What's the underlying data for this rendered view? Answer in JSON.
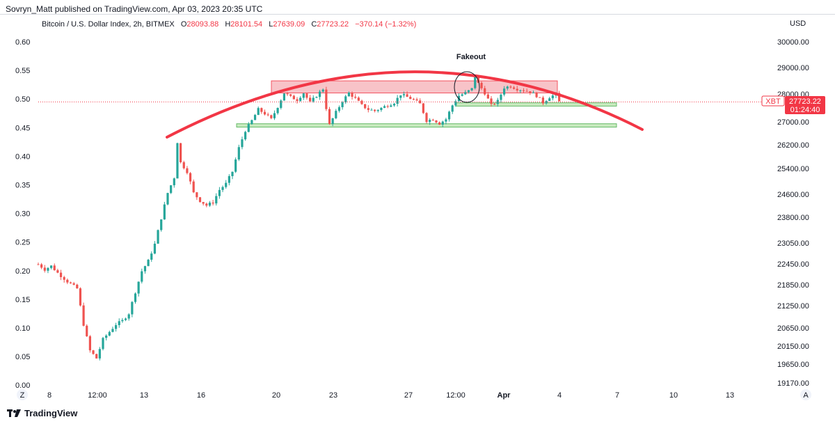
{
  "header": {
    "published_by": "Sovryn_Matt published on TradingView.com, Apr 03, 2023 20:35 UTC"
  },
  "legend": {
    "symbol": "Bitcoin / U.S. Dollar Index, 2h, BITMEX",
    "o_label": "O",
    "o_value": "28093.88",
    "h_label": "H",
    "h_value": "28101.54",
    "l_label": "L",
    "l_value": "27639.09",
    "c_label": "C",
    "c_value": "27723.22",
    "change": "−370.14 (−1.32%)"
  },
  "price_axis_currency": "USD",
  "price_tag": {
    "symbol": "XBT",
    "price": "27723.22",
    "countdown": "01:24:40",
    "color": "#f23645"
  },
  "annotation": {
    "fakeout_label": "Fakeout"
  },
  "footer": {
    "brand": "TradingView"
  },
  "axis_buttons": {
    "left": "Z",
    "right": "A"
  },
  "colors": {
    "up": "#26a69a",
    "down": "#ef5350",
    "arc": "#f23645",
    "resistance_fill": "#f7b9bf",
    "support_fill": "#bfe7b4",
    "support_stroke": "#4caf50"
  },
  "chart_data": {
    "type": "candlestick",
    "title": "Bitcoin / U.S. Dollar Index, 2h, BITMEX",
    "left_axis": {
      "ticks": [
        "0.60",
        "0.55",
        "0.50",
        "0.45",
        "0.40",
        "0.35",
        "0.30",
        "0.25",
        "0.20",
        "0.15",
        "0.10",
        "0.05",
        "0.00"
      ],
      "ylim": [
        0,
        0.6
      ]
    },
    "right_axis": {
      "ticks": [
        "30000.00",
        "29000.00",
        "28000.00",
        "27000.00",
        "26200.00",
        "25400.00",
        "24600.00",
        "23800.00",
        "23050.00",
        "22450.00",
        "21850.00",
        "21250.00",
        "20650.00",
        "20150.00",
        "19650.00",
        "19170.00"
      ],
      "scale": "log"
    },
    "x_ticks": [
      "8",
      "12:00",
      "13",
      "16",
      "20",
      "23",
      "27",
      "12:00",
      "Apr",
      "4",
      "7",
      "10",
      "13"
    ],
    "last_price": 27723.22,
    "price_path": [
      [
        0,
        22400
      ],
      [
        2,
        22250
      ],
      [
        4,
        22350
      ],
      [
        6,
        22150
      ],
      [
        9,
        21900
      ],
      [
        12,
        21700
      ],
      [
        14,
        20700
      ],
      [
        16,
        20000
      ],
      [
        18,
        19800
      ],
      [
        20,
        20300
      ],
      [
        22,
        20500
      ],
      [
        24,
        20700
      ],
      [
        26,
        20800
      ],
      [
        28,
        21000
      ],
      [
        30,
        21600
      ],
      [
        32,
        22200
      ],
      [
        34,
        22500
      ],
      [
        36,
        23000
      ],
      [
        38,
        23800
      ],
      [
        40,
        24600
      ],
      [
        42,
        25100
      ],
      [
        43,
        26300
      ],
      [
        44,
        25600
      ],
      [
        46,
        25300
      ],
      [
        48,
        24600
      ],
      [
        50,
        24350
      ],
      [
        52,
        24200
      ],
      [
        54,
        24300
      ],
      [
        56,
        24700
      ],
      [
        58,
        24900
      ],
      [
        60,
        25300
      ],
      [
        62,
        26100
      ],
      [
        64,
        26700
      ],
      [
        66,
        27050
      ],
      [
        68,
        27450
      ],
      [
        70,
        27300
      ],
      [
        72,
        27100
      ],
      [
        74,
        27550
      ],
      [
        76,
        28050
      ],
      [
        78,
        27900
      ],
      [
        80,
        27800
      ],
      [
        82,
        28050
      ],
      [
        84,
        27700
      ],
      [
        86,
        27950
      ],
      [
        88,
        28200
      ],
      [
        89,
        27500
      ],
      [
        90,
        26900
      ],
      [
        92,
        27350
      ],
      [
        94,
        27750
      ],
      [
        96,
        28050
      ],
      [
        98,
        27850
      ],
      [
        100,
        27600
      ],
      [
        102,
        27450
      ],
      [
        104,
        27400
      ],
      [
        106,
        27500
      ],
      [
        108,
        27600
      ],
      [
        110,
        27700
      ],
      [
        112,
        28000
      ],
      [
        114,
        27900
      ],
      [
        116,
        27800
      ],
      [
        118,
        27650
      ],
      [
        120,
        27050
      ],
      [
        122,
        27100
      ],
      [
        124,
        26950
      ],
      [
        126,
        27100
      ],
      [
        128,
        27600
      ],
      [
        130,
        27950
      ],
      [
        132,
        28050
      ],
      [
        134,
        28200
      ],
      [
        135,
        28700
      ],
      [
        136,
        28400
      ],
      [
        138,
        28050
      ],
      [
        140,
        27600
      ],
      [
        142,
        27750
      ],
      [
        144,
        28250
      ],
      [
        146,
        28300
      ],
      [
        148,
        28200
      ],
      [
        150,
        28150
      ],
      [
        152,
        28100
      ],
      [
        154,
        27950
      ],
      [
        156,
        27700
      ],
      [
        158,
        27900
      ],
      [
        160,
        28000
      ],
      [
        161,
        27723
      ]
    ],
    "annotations": [
      {
        "type": "arc",
        "label": "rounded top",
        "from_date": "14",
        "to_date": "8 Apr"
      },
      {
        "type": "zone",
        "kind": "resistance",
        "price_low": 28050,
        "price_high": 28500
      },
      {
        "type": "zone",
        "kind": "support",
        "price_low": 27570,
        "price_high": 27690
      },
      {
        "type": "zone",
        "kind": "support",
        "price_low": 26820,
        "price_high": 26940
      },
      {
        "type": "circle",
        "label": "Fakeout"
      }
    ]
  }
}
